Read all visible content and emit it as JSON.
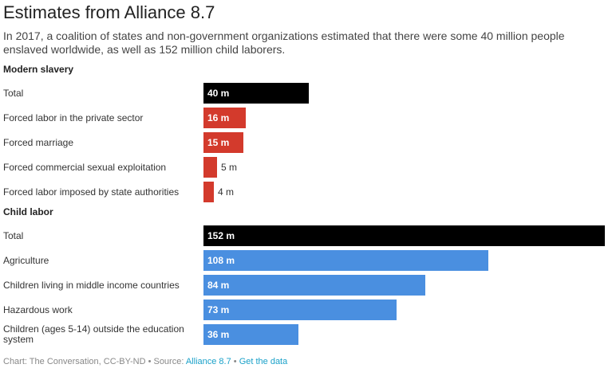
{
  "header": {
    "title": "Estimates from Alliance 8.7",
    "subtitle": "In 2017, a coalition of states and non-government organizations estimated that there were some 40 million people enslaved worldwide, as well as 152 million child laborers."
  },
  "footer": {
    "prefix": "Chart: The Conversation, CC-BY-ND • Source: ",
    "source_link": "Alliance 8.7",
    "separator": " • ",
    "data_link": "Get the data"
  },
  "colors": {
    "total": "#000000",
    "slavery": "#d33a2c",
    "child": "#4a8fe0"
  },
  "chart_data": {
    "type": "bar",
    "orientation": "horizontal",
    "title": "Estimates from Alliance 8.7",
    "xlim": [
      0,
      152
    ],
    "groups": [
      {
        "name": "Modern slavery",
        "categories": [
          "Total",
          "Forced labor in the private sector",
          "Forced marriage",
          "Forced commercial sexual exploitation",
          "Forced labor imposed by state authorities"
        ],
        "values": [
          40,
          16,
          15,
          5,
          4
        ],
        "labels": [
          "40 m",
          "16 m",
          "15 m",
          "5 m",
          "4 m"
        ],
        "color": "#d33a2c"
      },
      {
        "name": "Child labor",
        "categories": [
          "Total",
          "Agriculture",
          "Children living in middle income countries",
          "Hazardous work",
          "Children (ages 5-14) outside the education system"
        ],
        "values": [
          152,
          108,
          84,
          73,
          36
        ],
        "labels": [
          "152 m",
          "108 m",
          "84 m",
          "73 m",
          "36 m"
        ],
        "color": "#4a8fe0"
      }
    ]
  }
}
